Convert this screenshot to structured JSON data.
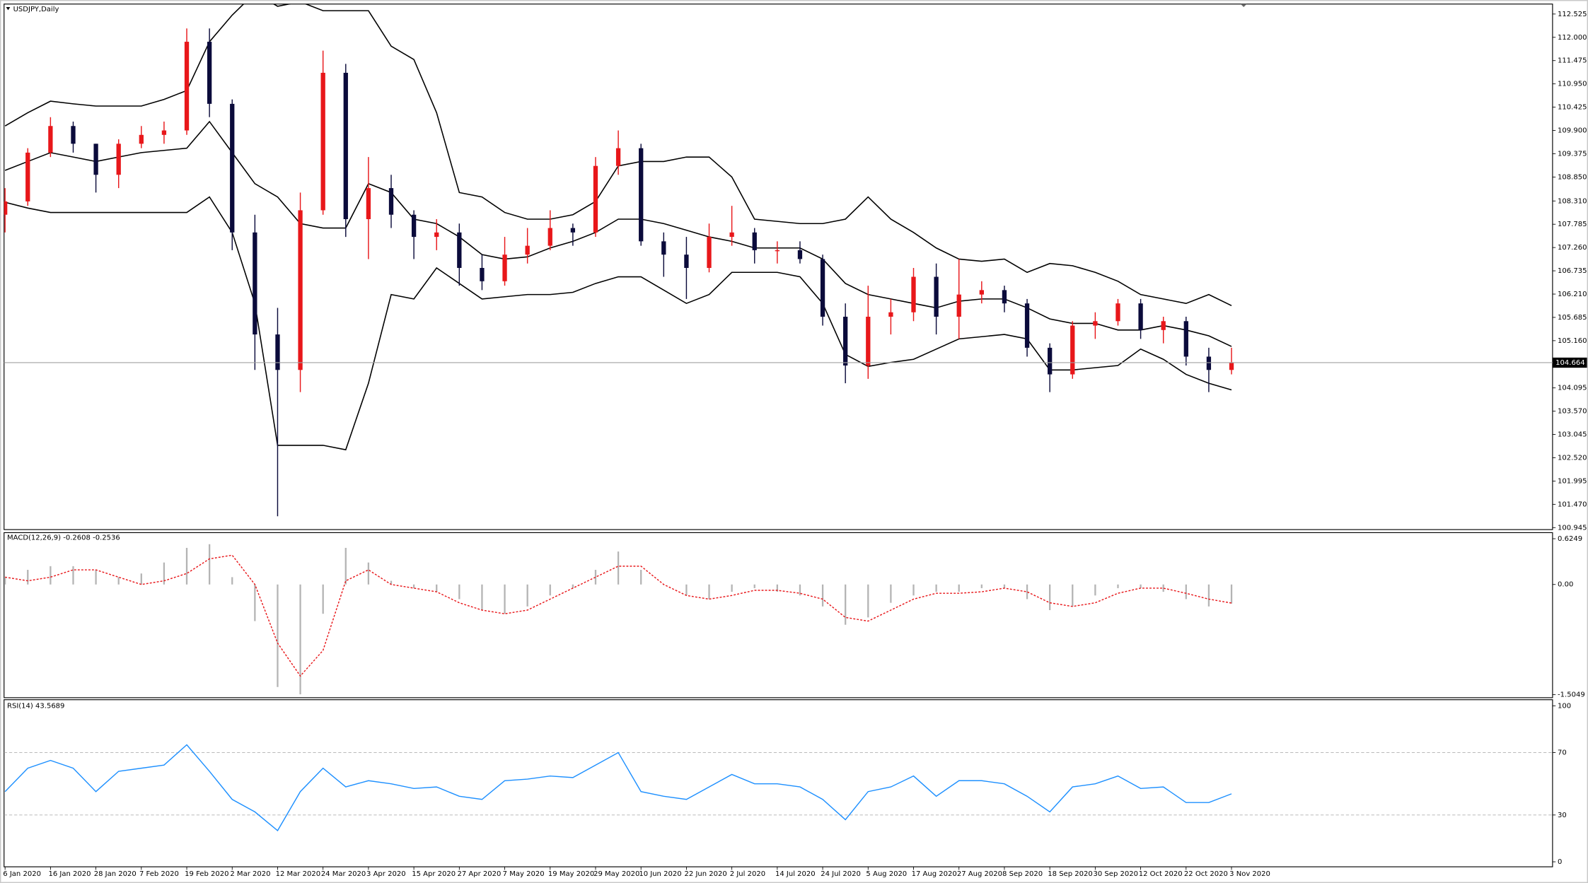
{
  "chart_data": [
    {
      "type": "candlestick",
      "title": "USDJPY,Daily",
      "categories": [
        "6 Jan 2020",
        null,
        "16 Jan 2020",
        null,
        "28 Jan 2020",
        null,
        "7 Feb 2020",
        null,
        "19 Feb 2020",
        null,
        "2 Mar 2020",
        null,
        "12 Mar 2020",
        null,
        "24 Mar 2020",
        null,
        "3 Apr 2020",
        null,
        "15 Apr 2020",
        null,
        "27 Apr 2020",
        null,
        "7 May 2020",
        null,
        "19 May 2020",
        null,
        "29 May 2020",
        null,
        "10 Jun 2020",
        null,
        "22 Jun 2020",
        null,
        "2 Jul 2020",
        null,
        "14 Jul 2020",
        null,
        "24 Jul 2020",
        null,
        "5 Aug 2020",
        null,
        "17 Aug 2020",
        null,
        "27 Aug 2020",
        null,
        "8 Sep 2020",
        null,
        "18 Sep 2020",
        null,
        "30 Sep 2020",
        null,
        "12 Oct 2020",
        null,
        "22 Oct 2020",
        null,
        "3 Nov 2020"
      ],
      "open": [
        108.0,
        108.3,
        109.4,
        110.0,
        109.6,
        108.9,
        109.6,
        109.8,
        109.9,
        111.9,
        110.5,
        107.6,
        105.3,
        104.5,
        108.1,
        111.2,
        107.9,
        108.6,
        108.0,
        107.5,
        107.6,
        106.8,
        106.5,
        107.1,
        107.3,
        107.7,
        107.6,
        109.1,
        109.5,
        107.4,
        107.1,
        106.8,
        107.5,
        107.6,
        107.2,
        107.2,
        107.0,
        105.7,
        104.6,
        105.7,
        105.8,
        106.6,
        105.7,
        106.2,
        106.3,
        106.0,
        105.0,
        104.4,
        105.5,
        105.6,
        106.0,
        105.4,
        105.6,
        104.8,
        104.5
      ],
      "high": [
        108.6,
        109.5,
        110.2,
        110.1,
        109.6,
        109.7,
        110.0,
        110.1,
        112.2,
        112.2,
        110.6,
        108.0,
        105.9,
        108.5,
        111.7,
        111.4,
        109.3,
        108.9,
        108.1,
        107.9,
        107.8,
        107.1,
        107.5,
        107.7,
        108.1,
        107.8,
        109.3,
        109.9,
        109.6,
        107.6,
        107.5,
        107.8,
        108.2,
        107.7,
        107.4,
        107.4,
        107.1,
        106.0,
        106.4,
        106.1,
        106.8,
        106.9,
        107.0,
        106.5,
        106.4,
        106.1,
        105.1,
        105.6,
        105.8,
        106.1,
        106.1,
        105.7,
        105.7,
        105.0,
        105.0
      ],
      "low": [
        107.6,
        108.2,
        109.3,
        109.4,
        108.5,
        108.6,
        109.5,
        109.6,
        109.8,
        110.2,
        107.2,
        104.5,
        101.2,
        104.0,
        108.0,
        107.5,
        107.0,
        107.7,
        107.0,
        107.2,
        106.4,
        106.3,
        106.4,
        106.9,
        107.2,
        107.3,
        107.5,
        108.9,
        107.3,
        106.6,
        106.1,
        106.7,
        107.3,
        106.9,
        106.9,
        106.9,
        105.5,
        104.2,
        104.3,
        105.3,
        105.6,
        105.3,
        105.2,
        106.0,
        105.8,
        104.8,
        104.0,
        104.3,
        105.2,
        105.5,
        105.2,
        105.1,
        104.6,
        104.0,
        104.4
      ],
      "close": [
        108.3,
        109.4,
        110.0,
        109.6,
        108.9,
        109.6,
        109.8,
        109.9,
        111.9,
        110.5,
        107.6,
        105.3,
        104.5,
        108.1,
        111.2,
        107.9,
        108.6,
        108.0,
        107.5,
        107.6,
        106.8,
        106.5,
        107.1,
        107.3,
        107.7,
        107.6,
        109.1,
        109.5,
        107.4,
        107.1,
        106.8,
        107.5,
        107.6,
        107.2,
        107.2,
        107.0,
        105.7,
        104.6,
        105.7,
        105.8,
        106.6,
        105.7,
        106.2,
        106.3,
        106.0,
        105.0,
        104.4,
        105.5,
        105.6,
        106.0,
        105.4,
        105.6,
        104.8,
        104.5,
        104.664
      ],
      "upper_band": [
        110.0,
        110.3,
        110.56,
        110.5,
        110.45,
        110.45,
        110.45,
        110.6,
        110.8,
        111.9,
        112.5,
        113.0,
        112.7,
        112.8,
        112.6,
        112.6,
        112.6,
        111.8,
        111.5,
        110.3,
        108.5,
        108.4,
        108.05,
        107.9,
        107.9,
        108.0,
        108.3,
        109.1,
        109.2,
        109.2,
        109.3,
        109.3,
        108.85,
        107.9,
        107.85,
        107.8,
        107.8,
        107.9,
        108.4,
        107.9,
        107.6,
        107.25,
        107.0,
        106.95,
        107.0,
        106.7,
        106.9,
        106.85,
        106.7,
        106.5,
        106.2,
        106.1,
        106.0,
        106.2,
        105.95
      ],
      "middle_band": [
        109.0,
        109.2,
        109.4,
        109.3,
        109.2,
        109.3,
        109.4,
        109.45,
        109.5,
        110.1,
        109.4,
        108.7,
        108.4,
        107.8,
        107.7,
        107.7,
        108.7,
        108.5,
        107.9,
        107.8,
        107.5,
        107.1,
        107.0,
        107.05,
        107.25,
        107.4,
        107.6,
        107.9,
        107.9,
        107.8,
        107.65,
        107.5,
        107.4,
        107.25,
        107.25,
        107.25,
        107.0,
        106.45,
        106.2,
        106.1,
        106.0,
        105.9,
        106.05,
        106.1,
        106.1,
        105.9,
        105.65,
        105.55,
        105.55,
        105.4,
        105.4,
        105.5,
        105.4,
        105.27,
        105.03
      ],
      "lower_band": [
        108.28,
        108.15,
        108.05,
        108.05,
        108.05,
        108.05,
        108.05,
        108.05,
        108.05,
        108.4,
        107.6,
        106.0,
        102.8,
        102.8,
        102.8,
        102.7,
        104.2,
        106.2,
        106.1,
        106.8,
        106.45,
        106.1,
        106.15,
        106.2,
        106.2,
        106.25,
        106.45,
        106.6,
        106.6,
        106.3,
        106.0,
        106.2,
        106.7,
        106.7,
        106.7,
        106.6,
        106.0,
        104.85,
        104.58,
        104.67,
        104.74,
        104.97,
        105.2,
        105.25,
        105.3,
        105.2,
        104.5,
        104.5,
        104.55,
        104.6,
        104.97,
        104.74,
        104.4,
        104.2,
        104.05
      ],
      "current_price": 104.664,
      "up_color": "#e8171a",
      "down_color": "#0b0b3b",
      "band_color": "#000000",
      "price_line_color": "#a0a0a0",
      "ylim": [
        100.9,
        112.75
      ],
      "yticks": [
        112.525,
        {
          "value": 112,
          "label": "112.000"
        },
        111.475,
        {
          "value": 110.95,
          "label": "110.950"
        },
        110.425,
        {
          "value": 109.9,
          "label": "109.900"
        },
        109.375,
        {
          "value": 108.85,
          "label": "108.850"
        },
        {
          "value": 108.31,
          "label": "108.310"
        },
        107.785,
        {
          "value": 107.26,
          "label": "107.260"
        },
        106.735,
        {
          "value": 106.21,
          "label": "106.210"
        },
        105.685,
        {
          "value": 105.16,
          "label": "105.160"
        },
        104.095,
        {
          "value": 103.57,
          "label": "103.570"
        },
        103.045,
        {
          "value": 102.52,
          "label": "102.520"
        },
        101.995,
        {
          "value": 101.47,
          "label": "101.470"
        },
        100.945
      ]
    },
    {
      "type": "macd",
      "title": "MACD(12,26,9) -0.2608 -0.2536",
      "histogram": [
        0.1,
        0.2,
        0.25,
        0.25,
        0.2,
        0.1,
        0.15,
        0.3,
        0.5,
        0.55,
        0.1,
        -0.5,
        -1.4,
        -1.5,
        -0.4,
        0.5,
        0.3,
        0.05,
        -0.05,
        -0.1,
        -0.2,
        -0.35,
        -0.4,
        -0.3,
        -0.15,
        -0.05,
        0.2,
        0.45,
        0.2,
        0.0,
        -0.15,
        -0.2,
        -0.1,
        -0.05,
        -0.1,
        -0.15,
        -0.3,
        -0.55,
        -0.45,
        -0.25,
        -0.15,
        -0.1,
        -0.1,
        -0.05,
        -0.05,
        -0.2,
        -0.35,
        -0.3,
        -0.15,
        -0.05,
        -0.05,
        -0.1,
        -0.2,
        -0.3,
        -0.2608
      ],
      "signal": [
        0.1,
        0.05,
        0.1,
        0.2,
        0.2,
        0.1,
        0.0,
        0.05,
        0.15,
        0.35,
        0.4,
        0.0,
        -0.8,
        -1.25,
        -0.9,
        0.05,
        0.2,
        0.0,
        -0.05,
        -0.1,
        -0.25,
        -0.35,
        -0.4,
        -0.35,
        -0.2,
        -0.05,
        0.1,
        0.25,
        0.25,
        0.0,
        -0.15,
        -0.2,
        -0.15,
        -0.08,
        -0.08,
        -0.12,
        -0.2,
        -0.45,
        -0.5,
        -0.35,
        -0.2,
        -0.12,
        -0.12,
        -0.1,
        -0.05,
        -0.1,
        -0.25,
        -0.3,
        -0.25,
        -0.12,
        -0.05,
        -0.05,
        -0.12,
        -0.2,
        -0.2536
      ],
      "histogram_color": "#b4b4b4",
      "signal_color": "#e8171a",
      "ylim": [
        -1.546,
        0.708
      ],
      "yticks": [
        0.6249,
        {
          "value": 0,
          "label": "0.00"
        },
        -1.5049
      ]
    },
    {
      "type": "line",
      "title": "RSI(14) 43.5689",
      "values": [
        45,
        60,
        65,
        60,
        45,
        58,
        60,
        62,
        75,
        58,
        40,
        32,
        20,
        45,
        60,
        48,
        52,
        50,
        47,
        48,
        42,
        40,
        52,
        53,
        55,
        54,
        62,
        70,
        45,
        42,
        40,
        48,
        56,
        50,
        50,
        48,
        40,
        27,
        45,
        48,
        55,
        42,
        52,
        52,
        50,
        42,
        32,
        48,
        50,
        55,
        47,
        48,
        38,
        38,
        43.5689
      ],
      "color": "#1e90ff",
      "levels": [
        70,
        30
      ],
      "ylim": [
        -3.2,
        103.9
      ],
      "yticks": [
        100,
        70,
        30,
        0
      ]
    }
  ]
}
